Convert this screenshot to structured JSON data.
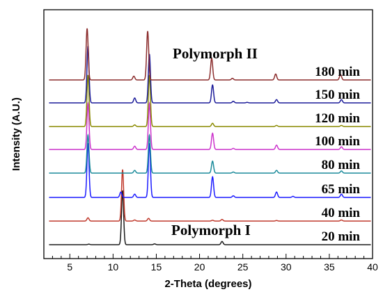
{
  "chart_data": {
    "type": "line",
    "xlabel": "2-Theta (degrees)",
    "ylabel": "Intensity (A.U.)",
    "xlim": [
      2,
      40
    ],
    "x_ticks": [
      5,
      10,
      15,
      20,
      25,
      30,
      35,
      40
    ],
    "grid": false,
    "legend": "none",
    "annotations": [
      {
        "text": "Polymorph II",
        "near": "180 min"
      },
      {
        "text": "Polymorph I",
        "near": "20 min"
      }
    ],
    "series": [
      {
        "name": "20 min",
        "color": "#1a1a1a",
        "peaks": [
          [
            11.1,
            1.0
          ],
          [
            22.6,
            0.06
          ],
          [
            14.8,
            0.015
          ],
          [
            7.2,
            0.01
          ]
        ]
      },
      {
        "name": "40 min",
        "color": "#c0392b",
        "peaks": [
          [
            11.1,
            0.95
          ],
          [
            7.1,
            0.06
          ],
          [
            14.1,
            0.05
          ],
          [
            12.5,
            0.02
          ],
          [
            22.6,
            0.03
          ],
          [
            21.5,
            0.015
          ],
          [
            28.9,
            0.01
          ],
          [
            36.4,
            0.02
          ]
        ]
      },
      {
        "name": "65 min",
        "color": "#1a1aff",
        "peaks": [
          [
            7.1,
            1.0
          ],
          [
            14.2,
            1.0
          ],
          [
            21.5,
            0.38
          ],
          [
            10.9,
            0.1
          ],
          [
            28.9,
            0.1
          ],
          [
            12.5,
            0.06
          ],
          [
            23.9,
            0.03
          ],
          [
            36.4,
            0.06
          ],
          [
            30.8,
            0.02
          ]
        ]
      },
      {
        "name": "80 min",
        "color": "#1a8a9a",
        "peaks": [
          [
            7.1,
            0.7
          ],
          [
            14.2,
            0.7
          ],
          [
            21.5,
            0.22
          ],
          [
            12.5,
            0.05
          ],
          [
            28.9,
            0.05
          ],
          [
            23.9,
            0.02
          ],
          [
            36.4,
            0.04
          ]
        ]
      },
      {
        "name": "100 min",
        "color": "#cc33cc",
        "peaks": [
          [
            7.1,
            0.85
          ],
          [
            14.2,
            0.85
          ],
          [
            21.5,
            0.3
          ],
          [
            12.5,
            0.06
          ],
          [
            28.9,
            0.08
          ],
          [
            23.9,
            0.02
          ],
          [
            36.4,
            0.05
          ]
        ]
      },
      {
        "name": "120 min",
        "color": "#8a8a00",
        "peaks": [
          [
            7.1,
            0.95
          ],
          [
            14.2,
            0.95
          ],
          [
            21.5,
            0.06
          ],
          [
            12.5,
            0.03
          ],
          [
            28.9,
            0.02
          ],
          [
            36.4,
            0.02
          ]
        ]
      },
      {
        "name": "150 min",
        "color": "#1a1a99",
        "peaks": [
          [
            7.1,
            1.05
          ],
          [
            14.2,
            0.9
          ],
          [
            21.5,
            0.33
          ],
          [
            12.5,
            0.09
          ],
          [
            28.9,
            0.06
          ],
          [
            23.9,
            0.03
          ],
          [
            36.4,
            0.06
          ],
          [
            25.5,
            0.01
          ]
        ]
      },
      {
        "name": "180 min",
        "color": "#8b2c2c",
        "peaks": [
          [
            7.0,
            0.95
          ],
          [
            14.0,
            0.9
          ],
          [
            21.4,
            0.4
          ],
          [
            12.4,
            0.07
          ],
          [
            28.8,
            0.11
          ],
          [
            23.8,
            0.03
          ],
          [
            36.3,
            0.1
          ]
        ]
      }
    ]
  }
}
